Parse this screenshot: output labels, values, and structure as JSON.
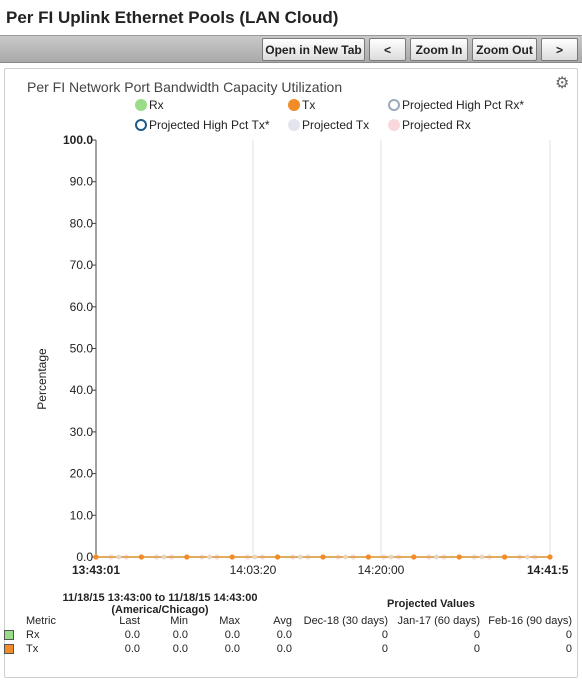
{
  "page": {
    "title": "Per FI Uplink Ethernet Pools (LAN Cloud)"
  },
  "toolbar": {
    "open_new_tab": "Open in New Tab",
    "prev": "<",
    "zoom_in": "Zoom In",
    "zoom_out": "Zoom Out",
    "next": ">"
  },
  "chart_panel": {
    "settings_icon": "gear-icon",
    "time_range": "11/18/15 13:43:00 to 11/18/15 14:43:00",
    "timezone": "(America/Chicago)",
    "projected_header": "Projected Values"
  },
  "chart_data": {
    "type": "line",
    "title": "Per FI Network Port Bandwidth Capacity Utilization",
    "xlabel": "",
    "ylabel": "Percentage",
    "ylim": [
      0,
      100
    ],
    "y_ticks": [
      "100.0",
      "90.0",
      "80.0",
      "70.0",
      "60.0",
      "50.0",
      "40.0",
      "30.0",
      "20.0",
      "10.0",
      "0.0"
    ],
    "x_ticks": [
      "13:43:01",
      "14:03:20",
      "14:20:00",
      "14:41:5"
    ],
    "grid": true,
    "legend_position": "top",
    "legend": [
      {
        "name": "Rx",
        "color": "#99dd88",
        "style": "filled"
      },
      {
        "name": "Tx",
        "color": "#f28c28",
        "style": "filled"
      },
      {
        "name": "Projected High Pct Rx*",
        "color": "#99aabb",
        "style": "hollow"
      },
      {
        "name": "Projected High Pct Tx*",
        "color": "#1a5c8a",
        "style": "hollow"
      },
      {
        "name": "Projected Tx",
        "color": "#e4e4ee",
        "style": "filled"
      },
      {
        "name": "Projected Rx",
        "color": "#f9d8dd",
        "style": "filled"
      }
    ],
    "series": [
      {
        "name": "Rx",
        "color": "#99dd88",
        "values": [
          0,
          0,
          0,
          0,
          0,
          0,
          0,
          0,
          0,
          0,
          0,
          0,
          0,
          0,
          0,
          0,
          0,
          0,
          0,
          0,
          0,
          0,
          0,
          0,
          0,
          0,
          0,
          0,
          0,
          0,
          0,
          0,
          0,
          0,
          0,
          0,
          0,
          0,
          0,
          0,
          0,
          0,
          0,
          0,
          0,
          0,
          0,
          0,
          0,
          0,
          0,
          0,
          0,
          0,
          0,
          0,
          0,
          0,
          0,
          0,
          0
        ]
      },
      {
        "name": "Tx",
        "color": "#f28c28",
        "values": [
          0,
          0,
          0,
          0,
          0,
          0,
          0,
          0,
          0,
          0,
          0,
          0,
          0,
          0,
          0,
          0,
          0,
          0,
          0,
          0,
          0,
          0,
          0,
          0,
          0,
          0,
          0,
          0,
          0,
          0,
          0,
          0,
          0,
          0,
          0,
          0,
          0,
          0,
          0,
          0,
          0,
          0,
          0,
          0,
          0,
          0,
          0,
          0,
          0,
          0,
          0,
          0,
          0,
          0,
          0,
          0,
          0,
          0,
          0,
          0,
          0
        ]
      }
    ]
  },
  "stats_table": {
    "headers": [
      "Metric",
      "Last",
      "Min",
      "Max",
      "Avg",
      "Dec-18 (30 days)",
      "Jan-17 (60 days)",
      "Feb-16 (90 days)"
    ],
    "rows": [
      {
        "color": "#99dd88",
        "cells": [
          "Rx",
          "0.0",
          "0.0",
          "0.0",
          "0.0",
          "0",
          "0",
          "0"
        ]
      },
      {
        "color": "#f28c28",
        "cells": [
          "Tx",
          "0.0",
          "0.0",
          "0.0",
          "0.0",
          "0",
          "0",
          "0"
        ]
      }
    ]
  }
}
